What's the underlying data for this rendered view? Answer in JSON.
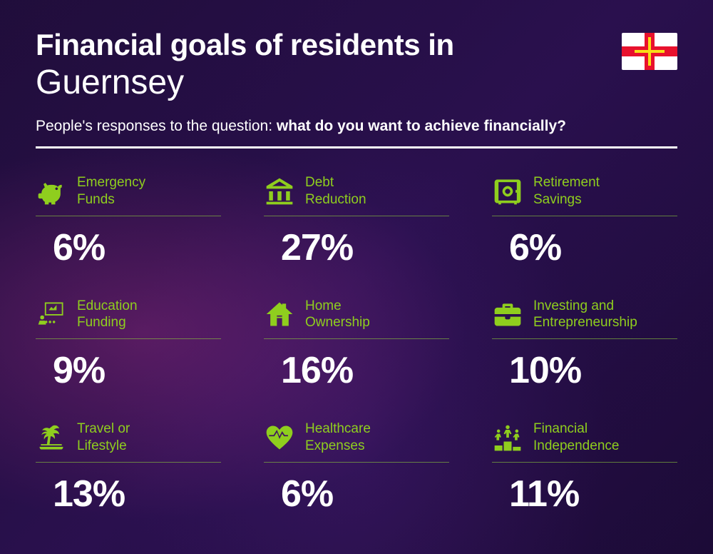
{
  "header": {
    "title_bold": "Financial goals of residents in",
    "title_light": "Guernsey",
    "subtitle_prefix": "People's responses to the question: ",
    "subtitle_question": "what do you want to achieve financially?"
  },
  "styling": {
    "accent_color": "#8fce1e",
    "text_color": "#ffffff",
    "background_gradient": [
      "#1f0d3a",
      "#2a1050",
      "#1a0a35"
    ],
    "title_bold_fontsize": 42,
    "title_light_fontsize": 48,
    "subtitle_fontsize": 21,
    "label_fontsize": 19,
    "value_fontsize": 52,
    "divider_color": "#ffffff",
    "underline_color": "rgba(140,200,60,0.6)",
    "grid_columns": 3,
    "column_gap": 60,
    "row_gap": 40
  },
  "flag": {
    "region": "Guernsey",
    "bg": "#ffffff",
    "cross": "#e8112d",
    "inner_cross": "#f9dd16"
  },
  "items": [
    {
      "icon": "piggy-bank-icon",
      "label": "Emergency\nFunds",
      "value": "6%"
    },
    {
      "icon": "bank-icon",
      "label": "Debt\nReduction",
      "value": "27%"
    },
    {
      "icon": "safe-icon",
      "label": "Retirement\nSavings",
      "value": "6%"
    },
    {
      "icon": "presentation-icon",
      "label": "Education\nFunding",
      "value": "9%"
    },
    {
      "icon": "house-icon",
      "label": "Home\nOwnership",
      "value": "16%"
    },
    {
      "icon": "briefcase-icon",
      "label": "Investing and\nEntrepreneurship",
      "value": "10%"
    },
    {
      "icon": "palm-tree-icon",
      "label": "Travel or\nLifestyle",
      "value": "13%"
    },
    {
      "icon": "heart-pulse-icon",
      "label": "Healthcare\nExpenses",
      "value": "6%"
    },
    {
      "icon": "podium-icon",
      "label": "Financial\nIndependence",
      "value": "11%"
    }
  ]
}
